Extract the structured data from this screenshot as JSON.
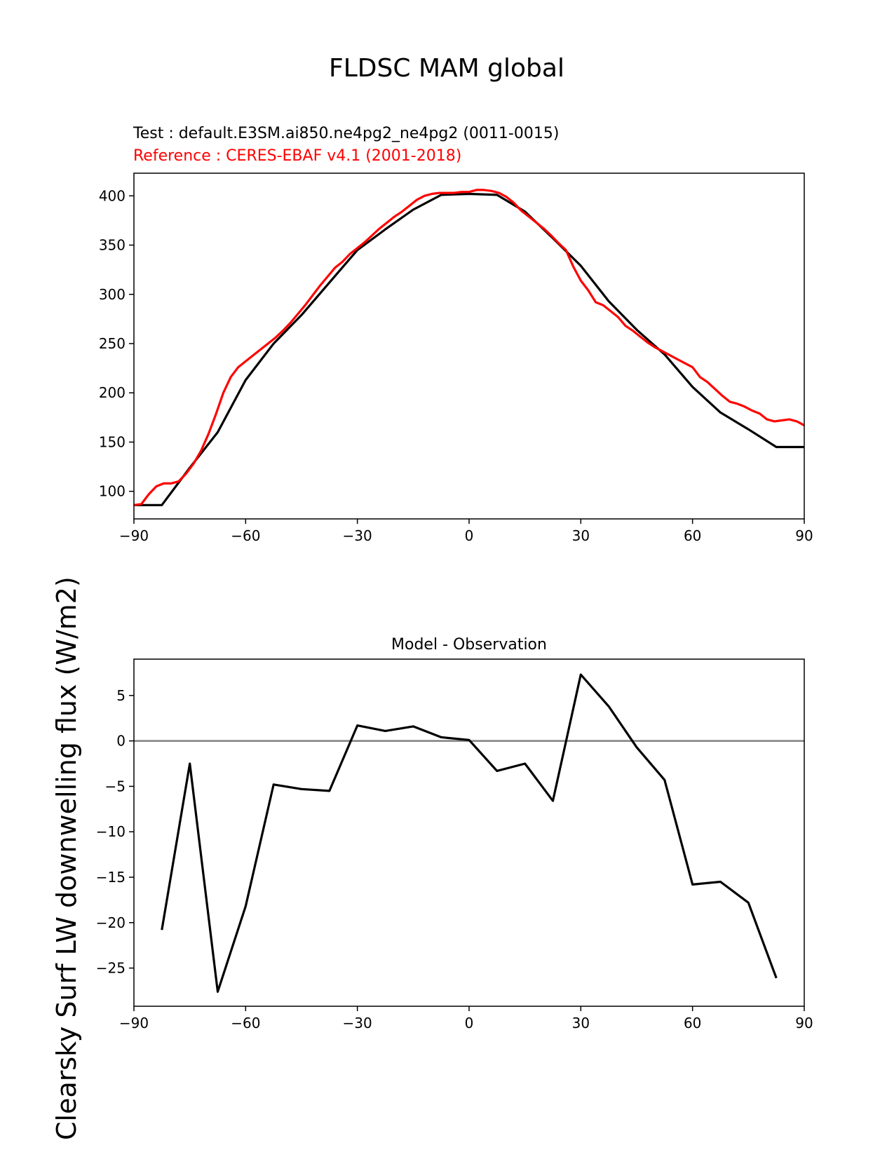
{
  "figure": {
    "title": "FLDSC MAM global",
    "ylabel": "Clearsky Surf LW downwelling flux (W/m2)"
  },
  "chart_data": [
    {
      "type": "line",
      "title_test": "Test : default.E3SM.ai850.ne4pg2_ne4pg2 (0011-0015)",
      "title_reference": "Reference : CERES-EBAF v4.1 (2001-2018)",
      "xlabel": "",
      "ylabel": "Clearsky Surf LW downwelling flux (W/m2)",
      "xlim": [
        -90,
        90
      ],
      "ylim": [
        72,
        423
      ],
      "xticks": [
        -90,
        -60,
        -30,
        0,
        30,
        60,
        90
      ],
      "xtick_labels": [
        "−90",
        "−60",
        "−30",
        "0",
        "30",
        "60",
        "90"
      ],
      "yticks": [
        100,
        150,
        200,
        250,
        300,
        350,
        400
      ],
      "ytick_labels": [
        "100",
        "150",
        "200",
        "250",
        "300",
        "350",
        "400"
      ],
      "series": [
        {
          "name": "Test",
          "color": "#000000",
          "x": [
            -90,
            -82.5,
            -75,
            -67.5,
            -60,
            -52.5,
            -45,
            -37.5,
            -30,
            -22.5,
            -15,
            -7.5,
            0,
            7.5,
            15,
            22.5,
            30,
            37.5,
            45,
            52.5,
            60,
            67.5,
            75,
            82.5,
            90
          ],
          "y": [
            86,
            86,
            124,
            160,
            213,
            250,
            279,
            312,
            345,
            366,
            386,
            401,
            402,
            401,
            384,
            357,
            329,
            293,
            264,
            239,
            206,
            180,
            163,
            145,
            145
          ]
        },
        {
          "name": "Reference",
          "color": "#ff0000",
          "x": [
            -90,
            -88,
            -86,
            -84,
            -82,
            -80,
            -78,
            -76,
            -74,
            -72,
            -70,
            -68,
            -66,
            -64,
            -62,
            -60,
            -58,
            -56,
            -54,
            -52,
            -50,
            -48,
            -46,
            -44,
            -42,
            -40,
            -38,
            -36,
            -34,
            -32,
            -30,
            -28,
            -26,
            -24,
            -22,
            -20,
            -18,
            -16,
            -14,
            -12,
            -10,
            -8,
            -6,
            -4,
            -2,
            0,
            2,
            4,
            6,
            8,
            10,
            12,
            14,
            16,
            18,
            20,
            22,
            24,
            26,
            28,
            30,
            32,
            34,
            36,
            38,
            40,
            42,
            44,
            46,
            48,
            50,
            52,
            54,
            56,
            58,
            60,
            62,
            64,
            66,
            68,
            70,
            72,
            74,
            76,
            78,
            80,
            82,
            84,
            86,
            88,
            90
          ],
          "y": [
            86,
            87,
            97,
            105,
            108,
            108,
            110,
            118,
            128,
            141,
            158,
            178,
            200,
            216,
            226,
            232,
            238,
            244,
            250,
            256,
            263,
            271,
            280,
            289,
            299,
            309,
            318,
            327,
            333,
            341,
            347,
            353,
            360,
            367,
            373,
            379,
            384,
            390,
            396,
            400,
            402,
            403,
            403,
            403,
            404,
            404,
            406,
            406,
            405,
            403,
            399,
            393,
            385,
            379,
            373,
            367,
            360,
            352,
            345,
            328,
            314,
            304,
            292,
            289,
            283,
            277,
            268,
            263,
            257,
            251,
            246,
            242,
            238,
            234,
            230,
            226,
            216,
            211,
            204,
            197,
            191,
            189,
            186,
            182,
            179,
            173,
            171,
            172,
            173,
            171,
            167
          ]
        }
      ]
    },
    {
      "type": "line",
      "title": "Model - Observation",
      "xlabel": "",
      "ylabel": "",
      "xlim": [
        -90,
        90
      ],
      "ylim": [
        -29.2,
        9.0
      ],
      "xticks": [
        -90,
        -60,
        -30,
        0,
        30,
        60,
        90
      ],
      "xtick_labels": [
        "−90",
        "−60",
        "−30",
        "0",
        "30",
        "60",
        "90"
      ],
      "yticks": [
        5,
        0,
        -5,
        -10,
        -15,
        -20,
        -25
      ],
      "ytick_labels": [
        "5",
        "0",
        "−5",
        "−10",
        "−15",
        "−20",
        "−25"
      ],
      "zero_line_color": "#808080",
      "series": [
        {
          "name": "Model - Observation",
          "color": "#000000",
          "x": [
            -82.5,
            -75,
            -67.5,
            -60,
            -52.5,
            -45,
            -37.5,
            -30,
            -22.5,
            -15,
            -7.5,
            0,
            7.5,
            15,
            22.5,
            30,
            37.5,
            45,
            52.5,
            60,
            67.5,
            75,
            82.5
          ],
          "y": [
            -20.8,
            -2.5,
            -27.6,
            -18.2,
            -4.8,
            -5.3,
            -5.5,
            1.7,
            1.1,
            1.6,
            0.4,
            0.1,
            -3.3,
            -2.5,
            -6.6,
            7.3,
            3.8,
            -0.7,
            -4.3,
            -15.8,
            -15.5,
            -17.8,
            -26.1
          ]
        }
      ]
    }
  ]
}
